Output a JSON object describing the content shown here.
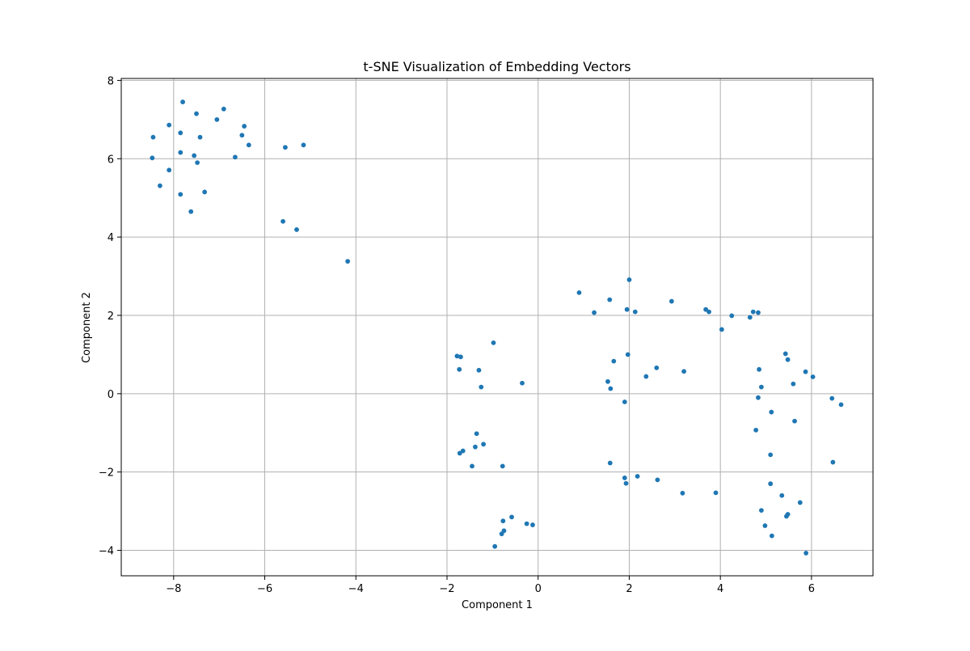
{
  "chart_data": {
    "type": "scatter",
    "title": "t-SNE Visualization of Embedding Vectors",
    "xlabel": "Component 1",
    "ylabel": "Component 2",
    "xlim": [
      -9.15,
      7.35
    ],
    "ylim": [
      -4.65,
      8.05
    ],
    "xticks": [
      -8,
      -6,
      -4,
      -2,
      0,
      2,
      4,
      6
    ],
    "yticks": [
      -4,
      -2,
      0,
      2,
      4,
      6,
      8
    ],
    "xtick_labels": [
      "−8",
      "−6",
      "−4",
      "−2",
      "0",
      "2",
      "4",
      "6"
    ],
    "ytick_labels": [
      "−4",
      "−2",
      "0",
      "2",
      "4",
      "6",
      "8"
    ],
    "grid": true,
    "marker_color": "#1f77b4",
    "points": [
      [
        -7.8,
        7.45
      ],
      [
        -6.9,
        7.27
      ],
      [
        -7.5,
        7.15
      ],
      [
        -7.05,
        7.0
      ],
      [
        -8.1,
        6.86
      ],
      [
        -6.45,
        6.83
      ],
      [
        -7.85,
        6.66
      ],
      [
        -6.5,
        6.6
      ],
      [
        -8.45,
        6.55
      ],
      [
        -7.42,
        6.55
      ],
      [
        -6.35,
        6.35
      ],
      [
        -5.55,
        6.29
      ],
      [
        -5.15,
        6.35
      ],
      [
        -7.85,
        6.16
      ],
      [
        -7.55,
        6.08
      ],
      [
        -6.65,
        6.04
      ],
      [
        -8.47,
        6.02
      ],
      [
        -7.48,
        5.9
      ],
      [
        -8.1,
        5.71
      ],
      [
        -8.3,
        5.31
      ],
      [
        -7.32,
        5.15
      ],
      [
        -7.85,
        5.09
      ],
      [
        -7.62,
        4.65
      ],
      [
        -5.6,
        4.4
      ],
      [
        -5.3,
        4.19
      ],
      [
        -4.18,
        3.38
      ],
      [
        -0.98,
        1.3
      ],
      [
        -1.78,
        0.96
      ],
      [
        -1.7,
        0.94
      ],
      [
        -1.73,
        0.62
      ],
      [
        -1.3,
        0.6
      ],
      [
        -0.35,
        0.27
      ],
      [
        -1.25,
        0.17
      ],
      [
        -1.35,
        -1.02
      ],
      [
        -1.2,
        -1.29
      ],
      [
        -1.38,
        -1.36
      ],
      [
        -1.65,
        -1.46
      ],
      [
        -1.72,
        -1.52
      ],
      [
        -1.45,
        -1.85
      ],
      [
        -0.78,
        -1.85
      ],
      [
        -0.58,
        -3.15
      ],
      [
        -0.77,
        -3.25
      ],
      [
        -0.25,
        -3.32
      ],
      [
        -0.12,
        -3.35
      ],
      [
        -0.75,
        -3.5
      ],
      [
        -0.8,
        -3.58
      ],
      [
        -0.95,
        -3.9
      ],
      [
        2.0,
        2.91
      ],
      [
        0.9,
        2.58
      ],
      [
        1.57,
        2.4
      ],
      [
        2.93,
        2.36
      ],
      [
        1.95,
        2.15
      ],
      [
        3.68,
        2.15
      ],
      [
        1.23,
        2.07
      ],
      [
        2.13,
        2.09
      ],
      [
        3.75,
        2.09
      ],
      [
        4.72,
        2.09
      ],
      [
        4.83,
        2.07
      ],
      [
        4.25,
        1.99
      ],
      [
        4.65,
        1.95
      ],
      [
        4.03,
        1.64
      ],
      [
        1.97,
        1.0
      ],
      [
        1.66,
        0.83
      ],
      [
        2.6,
        0.66
      ],
      [
        3.2,
        0.57
      ],
      [
        2.37,
        0.44
      ],
      [
        1.53,
        0.31
      ],
      [
        1.59,
        0.13
      ],
      [
        1.9,
        -0.21
      ],
      [
        5.43,
        1.02
      ],
      [
        5.48,
        0.87
      ],
      [
        4.85,
        0.62
      ],
      [
        5.87,
        0.56
      ],
      [
        6.03,
        0.43
      ],
      [
        5.6,
        0.25
      ],
      [
        4.9,
        0.17
      ],
      [
        4.83,
        -0.1
      ],
      [
        6.45,
        -0.12
      ],
      [
        6.65,
        -0.28
      ],
      [
        5.12,
        -0.47
      ],
      [
        5.63,
        -0.7
      ],
      [
        4.78,
        -0.93
      ],
      [
        5.1,
        -1.56
      ],
      [
        6.47,
        -1.75
      ],
      [
        1.58,
        -1.77
      ],
      [
        2.18,
        -2.11
      ],
      [
        1.9,
        -2.15
      ],
      [
        2.62,
        -2.2
      ],
      [
        1.93,
        -2.29
      ],
      [
        5.1,
        -2.3
      ],
      [
        3.17,
        -2.54
      ],
      [
        3.9,
        -2.53
      ],
      [
        5.35,
        -2.6
      ],
      [
        5.75,
        -2.78
      ],
      [
        4.9,
        -2.98
      ],
      [
        5.48,
        -3.08
      ],
      [
        5.45,
        -3.13
      ],
      [
        4.98,
        -3.37
      ],
      [
        5.13,
        -3.63
      ],
      [
        5.88,
        -4.07
      ]
    ]
  }
}
